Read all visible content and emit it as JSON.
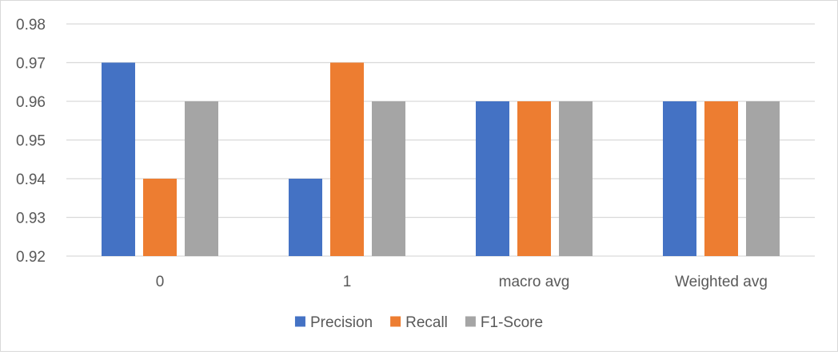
{
  "chart_data": {
    "type": "bar",
    "categories": [
      "0",
      "1",
      "macro avg",
      "Weighted avg"
    ],
    "series": [
      {
        "name": "Precision",
        "values": [
          0.97,
          0.94,
          0.96,
          0.96
        ],
        "color": "#4472C4"
      },
      {
        "name": "Recall",
        "values": [
          0.94,
          0.97,
          0.96,
          0.96
        ],
        "color": "#ED7D31"
      },
      {
        "name": "F1-Score",
        "values": [
          0.96,
          0.96,
          0.96,
          0.96
        ],
        "color": "#A5A5A5"
      }
    ],
    "ylim": [
      0.92,
      0.98
    ],
    "yticks": [
      "0.92",
      "0.93",
      "0.94",
      "0.95",
      "0.96",
      "0.97",
      "0.98"
    ],
    "grid": true,
    "legend_position": "bottom",
    "gridline_color": "#d9d9d9"
  }
}
